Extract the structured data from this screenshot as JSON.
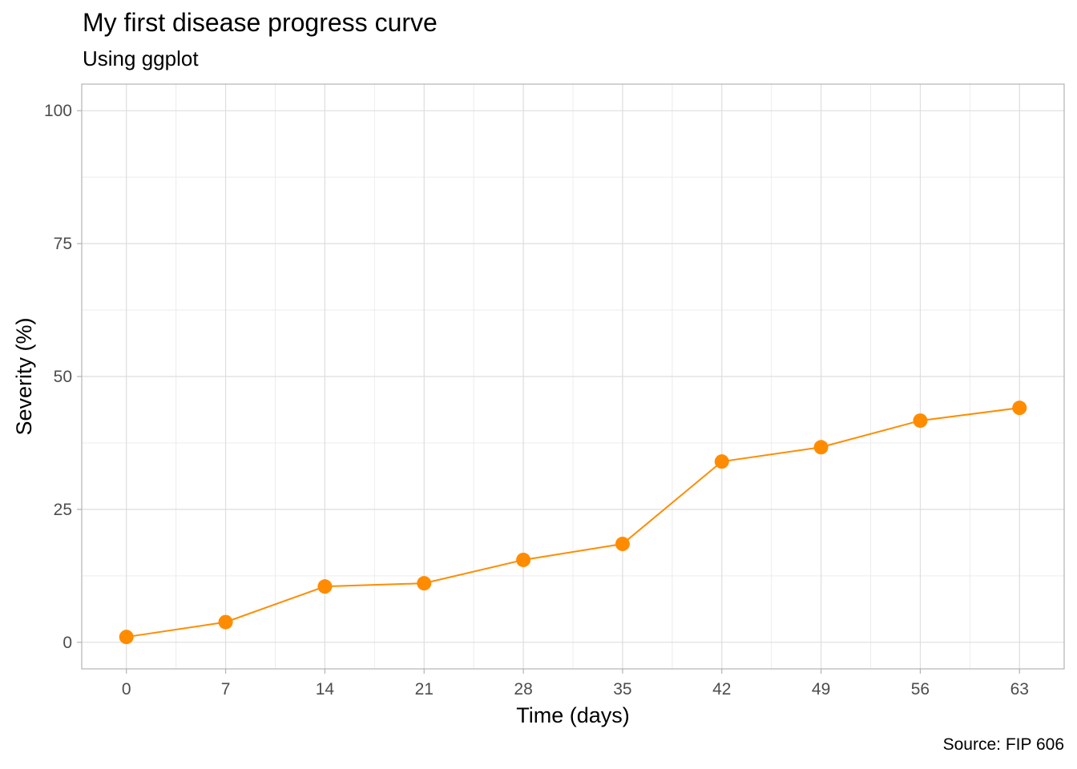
{
  "chart_data": {
    "type": "line",
    "title": "My first disease progress curve",
    "subtitle": "Using ggplot",
    "caption": "Source: FIP 606",
    "xlabel": "Time (days)",
    "ylabel": "Severity (%)",
    "x": [
      0,
      7,
      14,
      21,
      28,
      35,
      42,
      49,
      56,
      63
    ],
    "series": [
      {
        "values": [
          1,
          3.8,
          10.5,
          11.1,
          15.5,
          18.5,
          34,
          36.7,
          41.7,
          44.1
        ]
      }
    ],
    "x_ticks": [
      0,
      7,
      14,
      21,
      28,
      35,
      42,
      49,
      56,
      63
    ],
    "y_ticks": [
      0,
      25,
      50,
      75,
      100
    ],
    "xlim": [
      -3.15,
      66.15
    ],
    "ylim": [
      -5,
      105
    ],
    "grid": true,
    "color": "#FF8C00"
  }
}
